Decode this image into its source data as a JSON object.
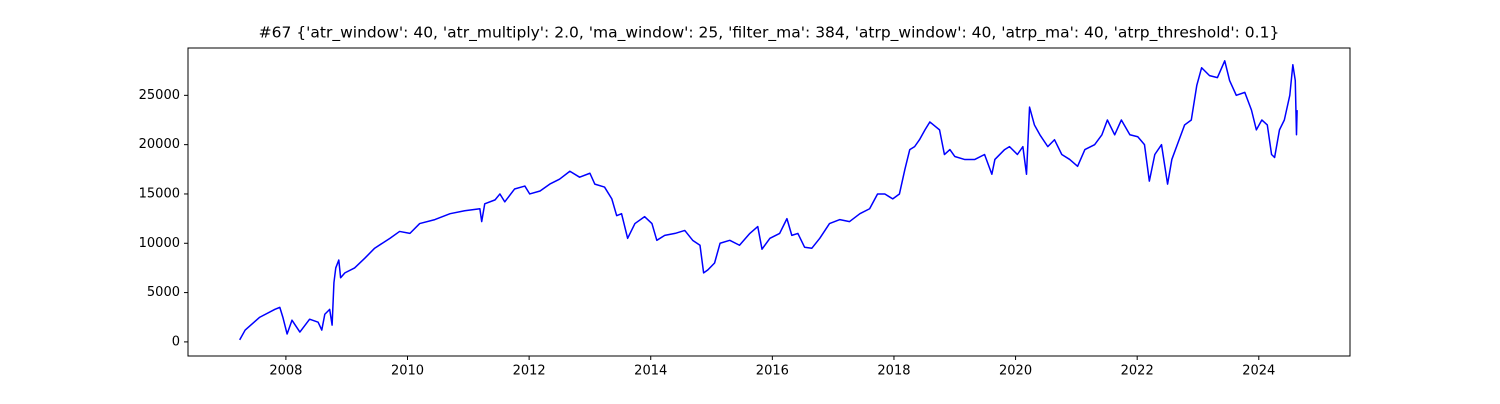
{
  "chart_data": {
    "type": "line",
    "title": "#67 {'atr_window': 40, 'atr_multiply': 2.0, 'ma_window': 25, 'filter_ma': 384, 'atrp_window': 40, 'atrp_ma': 40, 'atrp_threshold': 0.1}",
    "x": [
      2007.24,
      2007.33,
      2007.57,
      2007.82,
      2007.9,
      2007.95,
      2008.02,
      2008.1,
      2008.23,
      2008.39,
      2008.53,
      2008.59,
      2008.64,
      2008.72,
      2008.76,
      2008.79,
      2008.82,
      2008.87,
      2008.9,
      2008.97,
      2009.13,
      2009.3,
      2009.46,
      2009.71,
      2009.87,
      2010.04,
      2010.2,
      2010.45,
      2010.7,
      2010.94,
      2011.19,
      2011.22,
      2011.27,
      2011.44,
      2011.52,
      2011.6,
      2011.76,
      2011.93,
      2012.01,
      2012.18,
      2012.34,
      2012.5,
      2012.67,
      2012.83,
      2013.0,
      2013.08,
      2013.24,
      2013.36,
      2013.44,
      2013.52,
      2013.62,
      2013.74,
      2013.9,
      2014.02,
      2014.1,
      2014.23,
      2014.4,
      2014.56,
      2014.69,
      2014.81,
      2014.87,
      2014.94,
      2015.05,
      2015.14,
      2015.3,
      2015.46,
      2015.63,
      2015.76,
      2015.83,
      2015.96,
      2016.12,
      2016.24,
      2016.32,
      2016.42,
      2016.53,
      2016.65,
      2016.78,
      2016.94,
      2017.11,
      2017.27,
      2017.44,
      2017.6,
      2017.73,
      2017.85,
      2017.98,
      2018.09,
      2018.18,
      2018.26,
      2018.34,
      2018.42,
      2018.51,
      2018.59,
      2018.75,
      2018.83,
      2018.92,
      2019.0,
      2019.16,
      2019.33,
      2019.49,
      2019.61,
      2019.66,
      2019.82,
      2019.9,
      2020.03,
      2020.12,
      2020.18,
      2020.23,
      2020.31,
      2020.4,
      2020.53,
      2020.64,
      2020.76,
      2020.89,
      2021.02,
      2021.14,
      2021.3,
      2021.42,
      2021.51,
      2021.63,
      2021.74,
      2021.88,
      2022.01,
      2022.12,
      2022.2,
      2022.29,
      2022.4,
      2022.5,
      2022.57,
      2022.66,
      2022.78,
      2022.89,
      2022.98,
      2023.06,
      2023.19,
      2023.32,
      2023.44,
      2023.52,
      2023.63,
      2023.77,
      2023.88,
      2023.96,
      2024.05,
      2024.14,
      2024.21,
      2024.26,
      2024.34,
      2024.42,
      2024.51,
      2024.56,
      2024.6,
      2024.62,
      2024.63
    ],
    "series": [
      {
        "color": "#0000ff",
        "values": [
          200,
          1200,
          2500,
          3300,
          3500,
          2500,
          800,
          2200,
          1000,
          2300,
          2000,
          1200,
          2800,
          3300,
          1700,
          6000,
          7500,
          8300,
          6500,
          7000,
          7500,
          8500,
          9500,
          10500,
          11200,
          11000,
          12000,
          12400,
          13000,
          13300,
          13500,
          12200,
          14000,
          14400,
          15000,
          14200,
          15500,
          15800,
          15000,
          15300,
          16000,
          16500,
          17300,
          16700,
          17100,
          16000,
          15700,
          14500,
          12800,
          13000,
          10500,
          12000,
          12700,
          12000,
          10300,
          10800,
          11000,
          11300,
          10300,
          9800,
          7000,
          7300,
          8000,
          10000,
          10300,
          9800,
          11000,
          11700,
          9400,
          10500,
          11000,
          12500,
          10800,
          11000,
          9600,
          9500,
          10500,
          12000,
          12400,
          12200,
          13000,
          13500,
          15000,
          15000,
          14500,
          15000,
          17500,
          19500,
          19800,
          20500,
          21500,
          22300,
          21500,
          19000,
          19500,
          18800,
          18500,
          18500,
          19000,
          17000,
          18500,
          19500,
          19800,
          19000,
          19800,
          17000,
          23800,
          22000,
          21000,
          19800,
          20500,
          19000,
          18500,
          17800,
          19500,
          20000,
          21000,
          22500,
          21000,
          22500,
          21000,
          20800,
          20000,
          16300,
          19000,
          20000,
          16000,
          18500,
          20000,
          22000,
          22500,
          26000,
          27800,
          27000,
          26800,
          28500,
          26500,
          25000,
          25300,
          23500,
          21500,
          22500,
          22000,
          19000,
          18700,
          21500,
          22500,
          25000,
          28100,
          26500,
          21000,
          23500
        ]
      }
    ],
    "xlim": [
      2006.39,
      2025.5
    ],
    "xticks": [
      2008,
      2010,
      2012,
      2014,
      2016,
      2018,
      2020,
      2022,
      2024
    ],
    "ylim": [
      -1430,
      29800
    ],
    "yticks": [
      0,
      5000,
      10000,
      15000,
      20000,
      25000
    ]
  }
}
